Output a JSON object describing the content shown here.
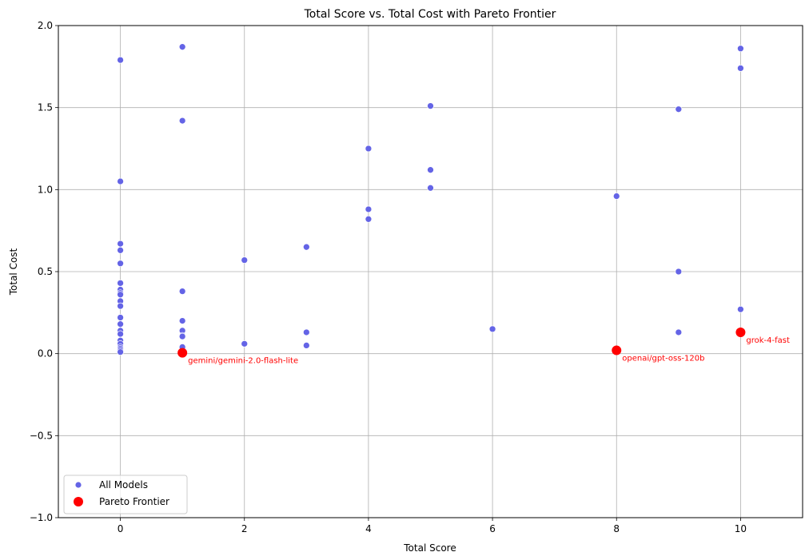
{
  "chart_data": {
    "type": "scatter",
    "title": "Total Score vs. Total Cost with Pareto Frontier",
    "xlabel": "Total Score",
    "ylabel": "Total Cost",
    "xlim": [
      -1,
      11
    ],
    "ylim": [
      -1.0,
      2.0
    ],
    "xticks": [
      0,
      2,
      4,
      6,
      8,
      10
    ],
    "xtick_labels": [
      "0",
      "2",
      "4",
      "6",
      "8",
      "10"
    ],
    "yticks": [
      -1.0,
      -0.5,
      0.0,
      0.5,
      1.0,
      1.5,
      2.0
    ],
    "ytick_labels": [
      "−1.0",
      "−0.5",
      "0.0",
      "0.5",
      "1.0",
      "1.5",
      "2.0"
    ],
    "grid": true,
    "legend_position": "lower-left",
    "series": [
      {
        "name": "All Models",
        "color": "#6464e6",
        "points": [
          [
            0,
            1.79
          ],
          [
            0,
            1.05
          ],
          [
            0,
            0.67
          ],
          [
            0,
            0.63
          ],
          [
            0,
            0.55
          ],
          [
            0,
            0.43
          ],
          [
            0,
            0.39
          ],
          [
            0,
            0.37
          ],
          [
            0,
            0.36
          ],
          [
            0,
            0.32
          ],
          [
            0,
            0.29
          ],
          [
            0,
            0.22
          ],
          [
            0,
            0.18
          ],
          [
            0,
            0.14
          ],
          [
            0,
            0.12
          ],
          [
            0,
            0.08
          ],
          [
            0,
            0.06
          ],
          [
            0,
            0.04
          ],
          [
            0,
            0.03
          ],
          [
            0,
            0.02
          ],
          [
            0,
            0.01
          ],
          [
            1,
            1.87
          ],
          [
            1,
            1.42
          ],
          [
            1,
            0.38
          ],
          [
            1,
            0.2
          ],
          [
            1,
            0.14
          ],
          [
            1,
            0.11
          ],
          [
            1,
            0.105
          ],
          [
            1,
            0.04
          ],
          [
            2,
            0.57
          ],
          [
            2,
            0.06
          ],
          [
            3,
            0.65
          ],
          [
            3,
            0.13
          ],
          [
            3,
            0.05
          ],
          [
            4,
            1.25
          ],
          [
            4,
            0.88
          ],
          [
            4,
            0.82
          ],
          [
            5,
            1.51
          ],
          [
            5,
            1.12
          ],
          [
            5,
            1.01
          ],
          [
            6,
            0.15
          ],
          [
            8,
            0.96
          ],
          [
            9,
            1.49
          ],
          [
            9,
            0.5
          ],
          [
            9,
            0.13
          ],
          [
            10,
            1.86
          ],
          [
            10,
            1.74
          ],
          [
            10,
            0.27
          ]
        ]
      },
      {
        "name": "Pareto Frontier",
        "color": "#ff0000",
        "points": [
          [
            1,
            0.005
          ],
          [
            8,
            0.02
          ],
          [
            10,
            0.13
          ]
        ],
        "labels": [
          "gemini/gemini-2.0-flash-lite",
          "openai/gpt-oss-120b",
          "grok-4-fast"
        ]
      }
    ]
  }
}
